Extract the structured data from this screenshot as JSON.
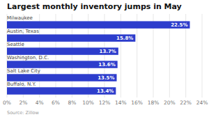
{
  "chart_data": {
    "type": "bar",
    "orientation": "horizontal",
    "title": "Largest monthly inventory jumps in May",
    "categories": [
      "Buffalo, N.Y.",
      "Salt Lake City",
      "Washington, D.C.",
      "Seattle",
      "Austin, Texas",
      "Milwaukee"
    ],
    "values": [
      13.4,
      13.5,
      13.6,
      13.7,
      15.8,
      22.5
    ],
    "value_labels": [
      "13.4%",
      "13.5%",
      "13.6%",
      "13.7%",
      "15.8%",
      "22.5%"
    ],
    "data_labels": true,
    "color": "#2d3dcc",
    "xlim": [
      0,
      24
    ],
    "xticks": [
      {
        "value": 0,
        "label": "0%"
      },
      {
        "value": 2,
        "label": "2%"
      },
      {
        "value": 4,
        "label": "4%"
      },
      {
        "value": 6,
        "label": "6%"
      },
      {
        "value": 8,
        "label": "8%"
      },
      {
        "value": 10,
        "label": "10%"
      },
      {
        "value": 12,
        "label": "12%"
      },
      {
        "value": 14,
        "label": "14%"
      },
      {
        "value": 16,
        "label": "16%"
      },
      {
        "value": 18,
        "label": "18%"
      },
      {
        "value": 20,
        "label": "20%"
      },
      {
        "value": 22,
        "label": "22%"
      },
      {
        "value": 24,
        "label": "24%"
      }
    ],
    "grid": true,
    "source": "Source: Zillow"
  }
}
